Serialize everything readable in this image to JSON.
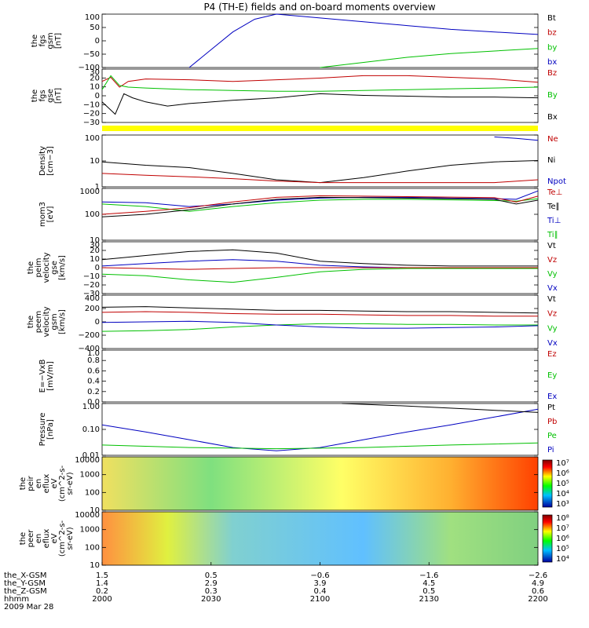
{
  "title": "P4 (TH-E) fields and on-board moments overview",
  "colors": {
    "black": "#000000",
    "red": "#c00000",
    "green": "#00c000",
    "blue": "#0000c0",
    "yellow": "#ffff00"
  },
  "chart_data": [
    {
      "type": "line",
      "ylabel": [
        "the",
        "fgs",
        "gsm",
        "[nT]"
      ],
      "yticks": [
        "100",
        "50",
        "0",
        "−50",
        "−100"
      ],
      "ylim": [
        -100,
        110
      ],
      "legend": [
        {
          "text": "Bt",
          "color": "black"
        },
        {
          "text": "bz",
          "color": "red"
        },
        {
          "text": "by",
          "color": "green"
        },
        {
          "text": "bx",
          "color": "blue"
        }
      ],
      "series": [
        {
          "name": "bx",
          "color": "blue",
          "x": [
            0.2,
            0.25,
            0.3,
            0.35,
            0.4,
            0.5,
            0.6,
            0.7,
            0.8,
            0.9,
            1.0
          ],
          "y": [
            -100,
            -30,
            40,
            90,
            110,
            95,
            80,
            65,
            50,
            40,
            30
          ]
        },
        {
          "name": "by",
          "color": "green",
          "x": [
            0.5,
            0.6,
            0.7,
            0.8,
            0.9,
            1.0
          ],
          "y": [
            -100,
            -80,
            -60,
            -45,
            -35,
            -25
          ]
        }
      ]
    },
    {
      "type": "line",
      "ylabel": [
        "the",
        "fgs",
        "gse",
        "[nT]"
      ],
      "yticks": [
        "30",
        "20",
        "10",
        "0",
        "−10",
        "−20",
        "−30"
      ],
      "ylim": [
        -35,
        30
      ],
      "legend": [
        {
          "text": "Bz",
          "color": "red"
        },
        {
          "text": "By",
          "color": "green"
        },
        {
          "text": "Bx",
          "color": "black"
        }
      ],
      "series": [
        {
          "name": "Bz",
          "color": "red",
          "x": [
            0,
            0.02,
            0.04,
            0.06,
            0.1,
            0.2,
            0.3,
            0.4,
            0.5,
            0.6,
            0.7,
            0.8,
            0.9,
            1.0
          ],
          "y": [
            15,
            20,
            8,
            15,
            18,
            17,
            15,
            17,
            19,
            22,
            22,
            20,
            18,
            14
          ]
        },
        {
          "name": "By",
          "color": "green",
          "x": [
            0,
            0.02,
            0.04,
            0.06,
            0.1,
            0.2,
            0.3,
            0.4,
            0.5,
            0.6,
            0.7,
            0.8,
            0.9,
            1.0
          ],
          "y": [
            5,
            22,
            10,
            8,
            7,
            5,
            4,
            3,
            3,
            4,
            5,
            6,
            7,
            8
          ]
        },
        {
          "name": "Bx",
          "color": "black",
          "x": [
            0,
            0.03,
            0.05,
            0.07,
            0.1,
            0.15,
            0.2,
            0.3,
            0.4,
            0.5,
            0.6,
            0.7,
            0.8,
            0.9,
            1.0
          ],
          "y": [
            -10,
            -25,
            0,
            -5,
            -10,
            -15,
            -12,
            -8,
            -5,
            0,
            -2,
            -3,
            -4,
            -4,
            -5
          ]
        }
      ]
    },
    {
      "type": "line",
      "scale": "log",
      "ylabel": [
        "Density",
        "[cm−3]"
      ],
      "yticks": [
        "100",
        "10",
        "1"
      ],
      "ylim": [
        0.3,
        150
      ],
      "legend": [
        {
          "text": "Ne",
          "color": "red"
        },
        {
          "text": "Ni",
          "color": "black"
        },
        {
          "text": "Npot",
          "color": "blue"
        }
      ],
      "series": [
        {
          "name": "Ni",
          "color": "black",
          "x": [
            0,
            0.1,
            0.2,
            0.3,
            0.4,
            0.5,
            0.6,
            0.7,
            0.8,
            0.9,
            1.0
          ],
          "y": [
            6,
            4,
            3,
            1.5,
            0.7,
            0.5,
            0.9,
            2,
            4,
            6,
            7
          ]
        },
        {
          "name": "Ne",
          "color": "red",
          "x": [
            0,
            0.1,
            0.2,
            0.3,
            0.4,
            0.5,
            0.6,
            0.7,
            0.8,
            0.9,
            1.0
          ],
          "y": [
            1.5,
            1.2,
            1,
            0.8,
            0.6,
            0.5,
            0.5,
            0.5,
            0.5,
            0.5,
            0.7
          ]
        },
        {
          "name": "Npot",
          "color": "blue",
          "x": [
            0.9,
            0.95,
            1.0
          ],
          "y": [
            120,
            100,
            80
          ]
        }
      ]
    },
    {
      "type": "line",
      "scale": "log",
      "ylabel": [
        "mom3",
        "[eV]"
      ],
      "yticks": [
        "1000",
        "100",
        "10"
      ],
      "ylim": [
        10,
        1000
      ],
      "legend": [
        {
          "text": "Te⊥",
          "color": "red"
        },
        {
          "text": "Te∥",
          "color": "black"
        },
        {
          "text": "Ti⊥",
          "color": "blue"
        },
        {
          "text": "Ti∥",
          "color": "green"
        }
      ],
      "series": [
        {
          "name": "Ti⊥",
          "color": "blue",
          "x": [
            0,
            0.1,
            0.2,
            0.3,
            0.4,
            0.5,
            0.6,
            0.7,
            0.8,
            0.9,
            0.95,
            1.0
          ],
          "y": [
            300,
            280,
            200,
            250,
            350,
            420,
            450,
            450,
            420,
            400,
            380,
            800
          ]
        },
        {
          "name": "Ti∥",
          "color": "green",
          "x": [
            0,
            0.1,
            0.2,
            0.3,
            0.4,
            0.5,
            0.6,
            0.7,
            0.8,
            0.9,
            0.95,
            1.0
          ],
          "y": [
            250,
            200,
            130,
            200,
            280,
            350,
            380,
            380,
            360,
            340,
            320,
            400
          ]
        },
        {
          "name": "Te⊥",
          "color": "red",
          "x": [
            0,
            0.1,
            0.2,
            0.3,
            0.4,
            0.5,
            0.6,
            0.7,
            0.8,
            0.9,
            0.95,
            1.0
          ],
          "y": [
            100,
            130,
            180,
            300,
            450,
            520,
            500,
            480,
            460,
            440,
            300,
            500
          ]
        },
        {
          "name": "Te∥",
          "color": "black",
          "x": [
            0,
            0.1,
            0.2,
            0.3,
            0.4,
            0.5,
            0.6,
            0.7,
            0.8,
            0.9,
            0.95,
            1.0
          ],
          "y": [
            80,
            100,
            150,
            250,
            380,
            450,
            440,
            420,
            400,
            380,
            250,
            350
          ]
        }
      ]
    },
    {
      "type": "line",
      "ylabel": [
        "the",
        "peim",
        "velocity",
        "gse",
        "[km/s]"
      ],
      "yticks": [
        "30",
        "20",
        "10",
        "0",
        "−10",
        "−20",
        "−30"
      ],
      "ylim": [
        -32,
        32
      ],
      "legend": [
        {
          "text": "Vt",
          "color": "black"
        },
        {
          "text": "Vz",
          "color": "red"
        },
        {
          "text": "Vy",
          "color": "green"
        },
        {
          "text": "Vx",
          "color": "blue"
        }
      ],
      "series": [
        {
          "name": "Vt",
          "color": "black",
          "x": [
            0,
            0.1,
            0.2,
            0.3,
            0.4,
            0.5,
            0.6,
            0.7,
            0.8,
            0.9,
            1.0
          ],
          "y": [
            10,
            15,
            20,
            22,
            18,
            8,
            5,
            3,
            2,
            2,
            2
          ]
        },
        {
          "name": "Vx",
          "color": "blue",
          "x": [
            0,
            0.1,
            0.2,
            0.3,
            0.4,
            0.5,
            0.6,
            0.7,
            0.8,
            0.9,
            1.0
          ],
          "y": [
            2,
            5,
            8,
            10,
            8,
            3,
            1,
            0,
            0,
            0,
            0
          ]
        },
        {
          "name": "Vz",
          "color": "red",
          "x": [
            0,
            0.1,
            0.2,
            0.3,
            0.4,
            0.5,
            0.6,
            0.7,
            0.8,
            0.9,
            1.0
          ],
          "y": [
            0,
            -1,
            -2,
            -1,
            0,
            0,
            0,
            0,
            0,
            0,
            0
          ]
        },
        {
          "name": "Vy",
          "color": "green",
          "x": [
            0,
            0.1,
            0.2,
            0.3,
            0.4,
            0.5,
            0.6,
            0.7,
            0.8,
            0.9,
            1.0
          ],
          "y": [
            -8,
            -10,
            -15,
            -18,
            -12,
            -5,
            -2,
            -1,
            -1,
            -1,
            -1
          ]
        }
      ]
    },
    {
      "type": "line",
      "ylabel": [
        "the",
        "peem",
        "velocity",
        "gsm",
        "[km/s]"
      ],
      "yticks": [
        "400",
        "200",
        "0",
        "−200",
        "−400"
      ],
      "ylim": [
        -420,
        420
      ],
      "legend": [
        {
          "text": "Vt",
          "color": "black"
        },
        {
          "text": "Vz",
          "color": "red"
        },
        {
          "text": "Vy",
          "color": "green"
        },
        {
          "text": "Vx",
          "color": "blue"
        }
      ],
      "series": [
        {
          "name": "Vt",
          "color": "black",
          "x": [
            0,
            0.1,
            0.2,
            0.3,
            0.4,
            0.5,
            0.6,
            0.7,
            0.8,
            0.9,
            1.0
          ],
          "y": [
            230,
            240,
            220,
            200,
            180,
            180,
            170,
            160,
            160,
            150,
            140
          ]
        },
        {
          "name": "Vz",
          "color": "red",
          "x": [
            0,
            0.1,
            0.2,
            0.3,
            0.4,
            0.5,
            0.6,
            0.7,
            0.8,
            0.9,
            1.0
          ],
          "y": [
            150,
            160,
            150,
            130,
            120,
            120,
            110,
            100,
            100,
            90,
            90
          ]
        },
        {
          "name": "Vy",
          "color": "green",
          "x": [
            0,
            0.1,
            0.2,
            0.3,
            0.4,
            0.5,
            0.6,
            0.7,
            0.8,
            0.9,
            1.0
          ],
          "y": [
            -150,
            -140,
            -120,
            -80,
            -50,
            -30,
            -30,
            -40,
            -40,
            -50,
            -50
          ]
        },
        {
          "name": "Vx",
          "color": "blue",
          "x": [
            0,
            0.1,
            0.2,
            0.3,
            0.4,
            0.5,
            0.6,
            0.7,
            0.8,
            0.9,
            1.0
          ],
          "y": [
            -10,
            0,
            10,
            -10,
            -50,
            -80,
            -100,
            -100,
            -90,
            -80,
            -60
          ]
        }
      ]
    },
    {
      "type": "line",
      "ylabel": [
        "E=−VxB",
        "[mV/m]"
      ],
      "yticks": [
        "1.0",
        "0.8",
        "0.6",
        "0.4",
        "0.2",
        "0.0"
      ],
      "ylim": [
        0,
        1
      ],
      "legend": [
        {
          "text": "Ez",
          "color": "red"
        },
        {
          "text": "Ey",
          "color": "green"
        },
        {
          "text": "Ex",
          "color": "blue"
        }
      ],
      "series": []
    },
    {
      "type": "line",
      "scale": "log",
      "ylabel": [
        "Pressure",
        "[nPa]"
      ],
      "yticks": [
        "1.00",
        "0.10",
        "0.01"
      ],
      "ylim": [
        0.01,
        1
      ],
      "legend": [
        {
          "text": "Pt",
          "color": "black"
        },
        {
          "text": "Pb",
          "color": "red"
        },
        {
          "text": "Pe",
          "color": "green"
        },
        {
          "text": "Pi",
          "color": "blue"
        }
      ],
      "series": [
        {
          "name": "Pi",
          "color": "blue",
          "x": [
            0,
            0.1,
            0.2,
            0.3,
            0.4,
            0.5,
            0.6,
            0.7,
            0.8,
            0.9,
            1.0
          ],
          "y": [
            0.15,
            0.08,
            0.04,
            0.02,
            0.015,
            0.02,
            0.04,
            0.08,
            0.15,
            0.3,
            0.6
          ]
        },
        {
          "name": "Pe",
          "color": "green",
          "x": [
            0,
            0.2,
            0.4,
            0.6,
            0.8,
            1.0
          ],
          "y": [
            0.025,
            0.02,
            0.018,
            0.02,
            0.025,
            0.03
          ]
        },
        {
          "name": "Pt",
          "color": "black",
          "x": [
            0.55,
            0.7,
            0.85,
            1.0
          ],
          "y": [
            1,
            0.8,
            0.6,
            0.45
          ]
        }
      ]
    },
    {
      "type": "heatmap",
      "ylabel": [
        "the",
        "peir",
        "en",
        "eflux",
        "eV",
        "(cm^2-s-",
        "sr-eV)"
      ],
      "yticks": [
        "10000",
        "1000",
        "100",
        "10"
      ],
      "colorbar": [
        "10⁷",
        "10⁶",
        "10⁵",
        "10⁴",
        "10³"
      ]
    },
    {
      "type": "heatmap",
      "ylabel": [
        "the",
        "peer",
        "en",
        "eflux",
        "eV",
        "(cm^2-s-",
        "sr-eV)"
      ],
      "yticks": [
        "10000",
        "1000",
        "100",
        "10"
      ],
      "colorbar": [
        "10⁸",
        "10⁷",
        "10⁶",
        "10⁵",
        "10⁴"
      ]
    }
  ],
  "bottom_axis": {
    "labels": [
      "the_X-GSM",
      "the_Y-GSM",
      "the_Z-GSM",
      "hhmm",
      "2009 Mar 28"
    ],
    "columns": [
      [
        "1.5",
        "1.4",
        "0.2",
        "2000"
      ],
      [
        "0.5",
        "2.9",
        "0.3",
        "2030"
      ],
      [
        "−0.6",
        "3.9",
        "0.4",
        "2100"
      ],
      [
        "−1.6",
        "4.5",
        "0.5",
        "2130"
      ],
      [
        "−2.6",
        "4.9",
        "0.6",
        "2200"
      ]
    ]
  }
}
